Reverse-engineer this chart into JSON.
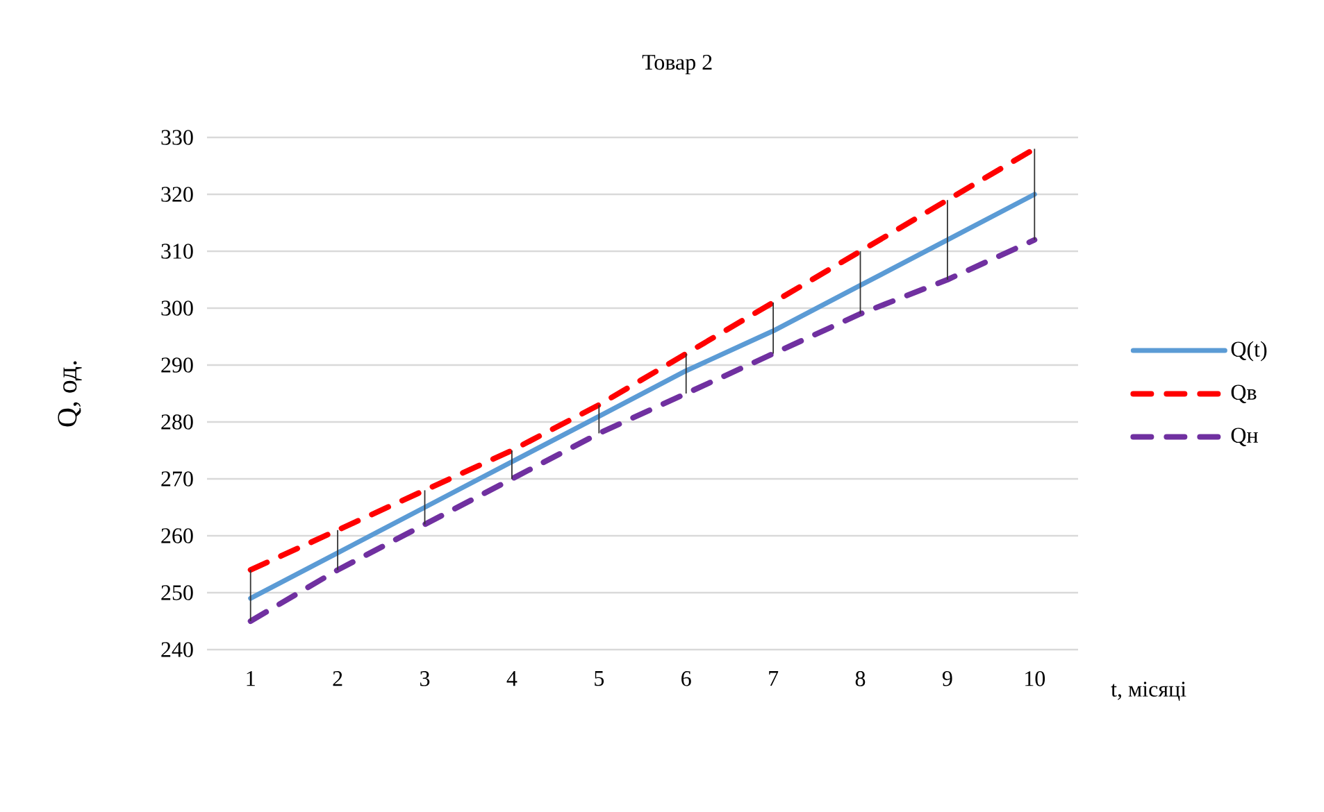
{
  "chart_data": {
    "type": "line",
    "title": "Товар 2",
    "xlabel": "t, місяці",
    "ylabel": "Q, од.",
    "categories": [
      "1",
      "2",
      "3",
      "4",
      "5",
      "6",
      "7",
      "8",
      "9",
      "10"
    ],
    "ylim": [
      240,
      330
    ],
    "yticks": [
      240,
      250,
      260,
      270,
      280,
      290,
      300,
      310,
      320,
      330
    ],
    "grid": "y",
    "legend": "right",
    "marker": "none",
    "series": [
      {
        "name": "Q(t)",
        "color": "#5b9bd5",
        "line_style": "solid",
        "values": [
          249,
          257,
          265,
          273,
          281,
          289,
          296,
          304,
          312,
          320
        ],
        "errors": [
          [
            245,
            254
          ],
          [
            254,
            261
          ],
          [
            262,
            268
          ],
          [
            270,
            275
          ],
          [
            278,
            283
          ],
          [
            285,
            292
          ],
          [
            292,
            301
          ],
          [
            299,
            310
          ],
          [
            305,
            319
          ],
          [
            312,
            328
          ]
        ]
      },
      {
        "name": "Qв",
        "color": "#ff0000",
        "line_style": "dashed",
        "values": [
          254,
          261,
          268,
          275,
          283,
          292,
          301,
          310,
          319,
          328
        ]
      },
      {
        "name": "Qн",
        "color": "#7030a0",
        "line_style": "dashed",
        "values": [
          245,
          254,
          262,
          270,
          278,
          285,
          292,
          299,
          305,
          312
        ]
      }
    ]
  }
}
